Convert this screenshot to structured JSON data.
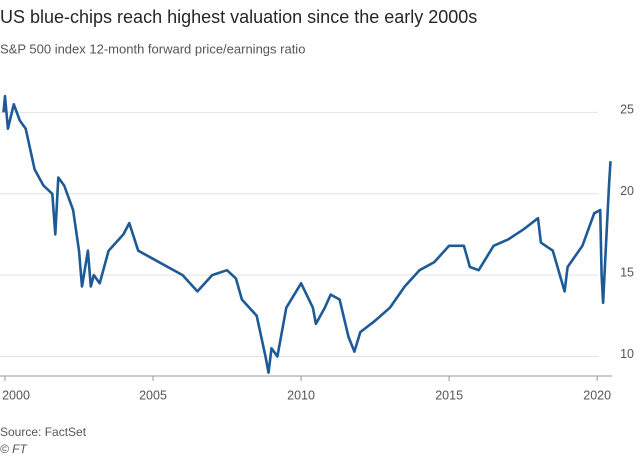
{
  "chart_data": {
    "type": "line",
    "title": "US blue-chips reach highest valuation since the early 2000s",
    "subtitle": "S&P 500 index 12-month forward price/earnings ratio",
    "source": "Source: FactSet",
    "credit": "© FT",
    "x": [
      1999.95,
      2000.0,
      2000.1,
      2000.3,
      2000.5,
      2000.7,
      2001.0,
      2001.3,
      2001.6,
      2001.7,
      2001.8,
      2002.0,
      2002.3,
      2002.5,
      2002.6,
      2002.8,
      2002.9,
      2003.0,
      2003.2,
      2003.5,
      2004.0,
      2004.2,
      2004.5,
      2005.0,
      2005.5,
      2006.0,
      2006.5,
      2007.0,
      2007.5,
      2007.8,
      2008.0,
      2008.5,
      2008.8,
      2008.9,
      2009.0,
      2009.2,
      2009.5,
      2010.0,
      2010.4,
      2010.5,
      2010.8,
      2011.0,
      2011.3,
      2011.6,
      2011.8,
      2012.0,
      2012.5,
      2013.0,
      2013.5,
      2014.0,
      2014.5,
      2015.0,
      2015.5,
      2015.7,
      2016.0,
      2016.5,
      2017.0,
      2017.5,
      2018.0,
      2018.1,
      2018.5,
      2018.9,
      2019.0,
      2019.5,
      2019.9,
      2020.1,
      2020.15,
      2020.2,
      2020.3,
      2020.4,
      2020.45
    ],
    "series": [
      {
        "name": "S&P 500 forward P/E",
        "color": "#1d5a96",
        "values": [
          25.0,
          26.0,
          24.0,
          25.5,
          24.5,
          24.0,
          21.5,
          20.5,
          20.0,
          17.5,
          21.0,
          20.5,
          19.0,
          16.5,
          14.3,
          16.5,
          14.3,
          15.0,
          14.5,
          16.5,
          17.5,
          18.2,
          16.5,
          16.0,
          15.5,
          15.0,
          14.0,
          15.0,
          15.3,
          14.8,
          13.5,
          12.5,
          10.0,
          9.0,
          10.5,
          10.0,
          13.0,
          14.5,
          13.0,
          12.0,
          13.0,
          13.8,
          13.5,
          11.2,
          10.3,
          11.5,
          12.2,
          13.0,
          14.3,
          15.3,
          15.8,
          16.8,
          16.8,
          15.5,
          15.3,
          16.8,
          17.2,
          17.8,
          18.5,
          17.0,
          16.5,
          14.0,
          15.5,
          16.8,
          18.8,
          19.0,
          15.0,
          13.3,
          17.0,
          20.5,
          22.0
        ]
      }
    ],
    "xlim": [
      1999.9,
      2020.5
    ],
    "xticks": [
      2000,
      2005,
      2010,
      2015,
      2020
    ],
    "ylim": [
      8.8,
      26.5
    ],
    "yticks": [
      10,
      15,
      20,
      25
    ],
    "grid": true
  }
}
